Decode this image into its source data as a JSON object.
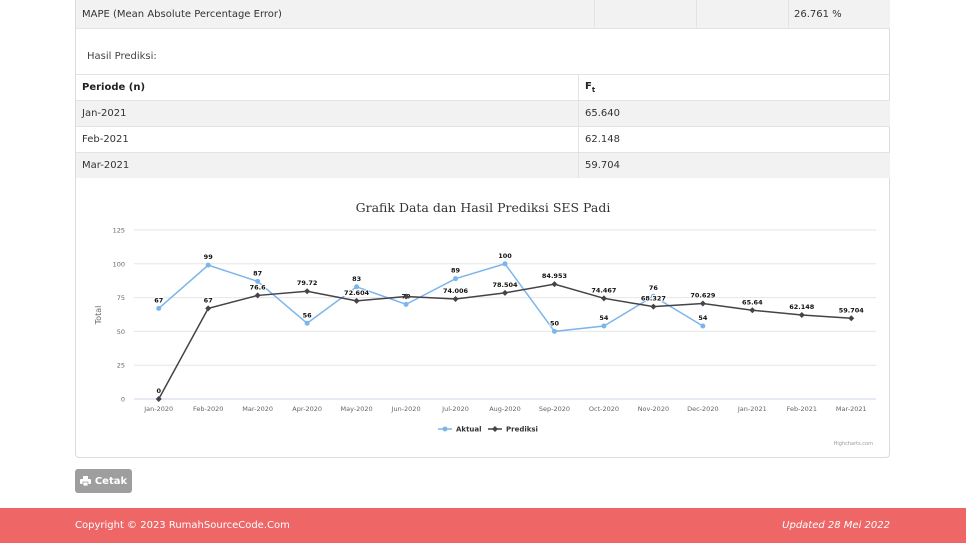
{
  "mape": {
    "label": "MAPE (Mean Absolute Percentage Error)",
    "value": "26.761 %"
  },
  "hasil_label": "Hasil Prediksi:",
  "pred_table": {
    "headers": [
      "Periode (n)",
      "Ft"
    ],
    "rows": [
      {
        "periode": "Jan-2021",
        "ft": "65.640"
      },
      {
        "periode": "Feb-2021",
        "ft": "62.148"
      },
      {
        "periode": "Mar-2021",
        "ft": "59.704"
      }
    ]
  },
  "chart_data": {
    "type": "line",
    "title": "Grafik Data dan Hasil Prediksi SES Padi",
    "ylabel": "Total",
    "ylim": [
      0,
      125
    ],
    "yticks": [
      0,
      25,
      50,
      75,
      100,
      125
    ],
    "categories": [
      "Jan-2020",
      "Feb-2020",
      "Mar-2020",
      "Apr-2020",
      "May-2020",
      "Jun-2020",
      "Jul-2020",
      "Aug-2020",
      "Sep-2020",
      "Oct-2020",
      "Nov-2020",
      "Dec-2020",
      "Jan-2021",
      "Feb-2021",
      "Mar-2021"
    ],
    "series": [
      {
        "name": "Aktual",
        "color": "#7cb5ec",
        "values": [
          67,
          99,
          87,
          56,
          83,
          70,
          89,
          100,
          50,
          54,
          76,
          54,
          null,
          null,
          null
        ],
        "labels": [
          "67",
          "99",
          "87",
          "56",
          "83",
          "70",
          "89",
          "100",
          "50",
          "54",
          "76",
          "54",
          null,
          null,
          null
        ]
      },
      {
        "name": "Prediksi",
        "color": "#434348",
        "values": [
          0,
          67,
          76.6,
          79.72,
          72.604,
          75.8228,
          74.006,
          78.504,
          84.953,
          74.467,
          68.327,
          70.629,
          65.64,
          62.148,
          59.704
        ],
        "labels": [
          "0",
          "67",
          "76.6",
          "79.72",
          "72.604",
          null,
          "74.006",
          "78.504",
          "84.953",
          "74.467",
          "68.327",
          "70.629",
          "65.64",
          "62.148",
          "59.704"
        ]
      }
    ],
    "credits": "Highcharts.com",
    "grid": true,
    "legend_position": "bottom-center"
  },
  "button": {
    "label": "Cetak",
    "icon": "printer-icon"
  },
  "footer": {
    "copyright": "Copyright © 2023 RumahSourceCode.Com",
    "updated": "Updated 28 Mei 2022"
  }
}
